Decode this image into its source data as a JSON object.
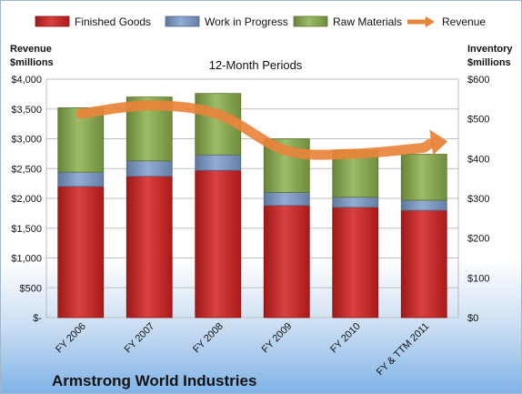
{
  "chart_data": {
    "type": "bar",
    "stacked": true,
    "title": "12-Month Periods",
    "company": "Armstrong World Industries",
    "categories": [
      "FY 2006",
      "FY 2007",
      "FY 2008",
      "FY 2009",
      "FY 2010",
      "FY & TTM 2011"
    ],
    "series": [
      {
        "name": "Finished Goods",
        "axis": "left",
        "color": "#d42020",
        "values": [
          2200,
          2370,
          2470,
          1880,
          1850,
          1800
        ]
      },
      {
        "name": "Work in Progress",
        "axis": "left",
        "color": "#7f9fcf",
        "values": [
          240,
          260,
          260,
          220,
          170,
          170
        ]
      },
      {
        "name": "Raw Materials",
        "axis": "left",
        "color": "#8bb04c",
        "values": [
          1080,
          1070,
          1030,
          900,
          790,
          770
        ]
      },
      {
        "name": "Revenue",
        "axis": "left",
        "type": "line",
        "color": "#e8843a",
        "values": [
          3420,
          3560,
          3410,
          2800,
          2750,
          2850
        ]
      }
    ],
    "left_axis": {
      "label": [
        "Revenue",
        "$millions"
      ],
      "ylim": [
        0,
        4000
      ],
      "ticks": [
        0,
        500,
        1000,
        1500,
        2000,
        2500,
        3000,
        3500,
        4000
      ],
      "tick_labels": [
        "$-",
        "$500",
        "$1,000",
        "$1,500",
        "$2,000",
        "$2,500",
        "$3,000",
        "$3,500",
        "$4,000"
      ]
    },
    "right_axis": {
      "label": [
        "Inventory",
        "$millions"
      ],
      "ylim": [
        0,
        600
      ],
      "ticks": [
        0,
        100,
        200,
        300,
        400,
        500,
        600
      ],
      "tick_labels": [
        "$0",
        "$100",
        "$200",
        "$300",
        "$400",
        "$500",
        "$600"
      ]
    },
    "grid": true,
    "legend_position": "top"
  }
}
